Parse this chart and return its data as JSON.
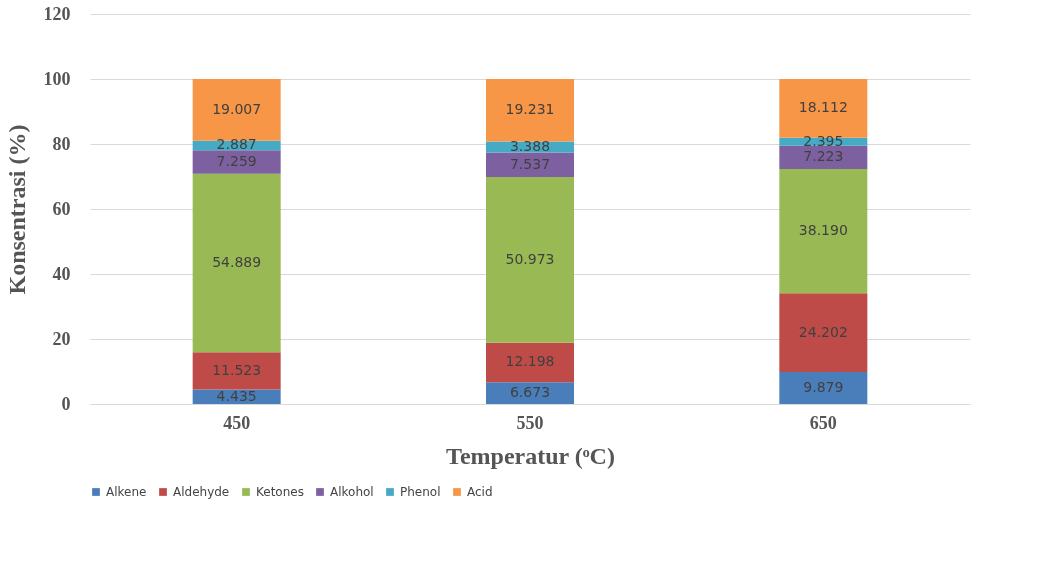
{
  "chart_data": {
    "type": "bar",
    "stacked": true,
    "xlabel": "Temperatur (ᵒC)",
    "ylabel": "Konsentrasi (%)",
    "categories": [
      "450",
      "550",
      "650"
    ],
    "series": [
      {
        "name": "Alkene",
        "color": "#4a7ebb",
        "values": [
          4.435,
          6.673,
          9.879
        ],
        "value_labels": [
          "4.435",
          "6.673",
          "9.879"
        ]
      },
      {
        "name": "Aldehyde",
        "color": "#be4b48",
        "values": [
          11.523,
          12.198,
          24.202
        ],
        "value_labels": [
          "11.523",
          "12.198",
          "24.202"
        ]
      },
      {
        "name": "Ketones",
        "color": "#98b954",
        "values": [
          54.889,
          50.973,
          38.19
        ],
        "value_labels": [
          "54.889",
          "50.973",
          "38.190"
        ]
      },
      {
        "name": "Alkohol",
        "color": "#7d60a0",
        "values": [
          7.259,
          7.537,
          7.223
        ],
        "value_labels": [
          "7.259",
          "7.537",
          "7.223"
        ]
      },
      {
        "name": "Phenol",
        "color": "#46aac5",
        "values": [
          2.887,
          3.388,
          2.395
        ],
        "value_labels": [
          "2.887",
          "3.388",
          "2.395"
        ]
      },
      {
        "name": "Acid",
        "color": "#f79646",
        "values": [
          19.007,
          19.231,
          18.112
        ],
        "value_labels": [
          "19.007",
          "19.231",
          "18.112"
        ]
      }
    ],
    "ylim": [
      0,
      120
    ],
    "yticks": [
      0,
      20,
      40,
      60,
      80,
      100,
      120
    ],
    "grid": "y",
    "legend": "bottom"
  }
}
